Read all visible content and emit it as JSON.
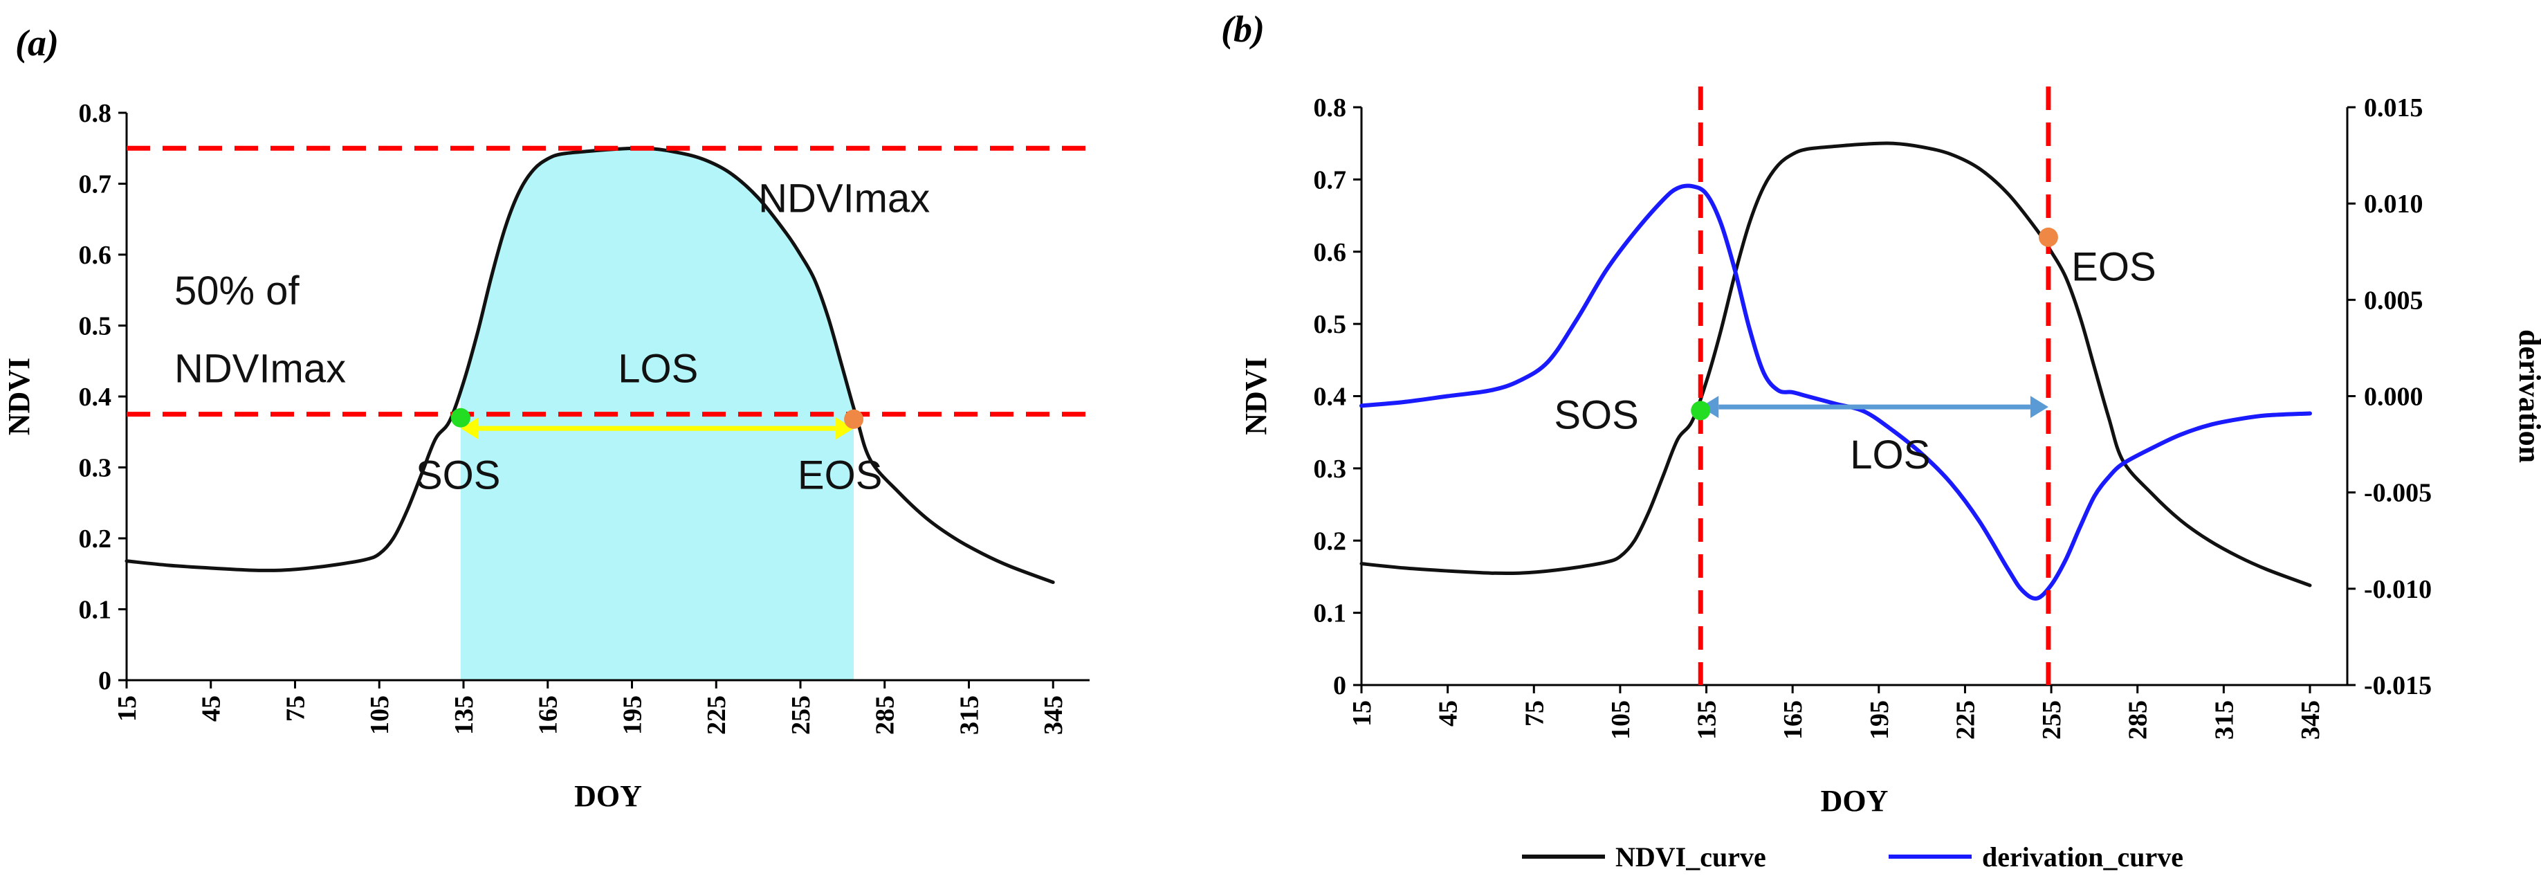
{
  "chart_data": [
    {
      "panel_label": "(a)",
      "type": "line",
      "xlabel": "DOY",
      "ylabel": "NDVI",
      "xlim": [
        15,
        358
      ],
      "ylim": [
        0,
        0.8
      ],
      "xticks": [
        "15",
        "45",
        "75",
        "105",
        "135",
        "165",
        "195",
        "225",
        "255",
        "285",
        "315",
        "345"
      ],
      "yticks": [
        "0",
        "0.1",
        "0.2",
        "0.3",
        "0.4",
        "0.5",
        "0.6",
        "0.7",
        "0.8"
      ],
      "grid": false,
      "series": [
        {
          "color": "#111111",
          "x": [
            15,
            30,
            45,
            60,
            70,
            80,
            90,
            100,
            105,
            110,
            115,
            120,
            125,
            130,
            135,
            140,
            145,
            150,
            155,
            160,
            165,
            170,
            180,
            190,
            200,
            210,
            220,
            230,
            240,
            250,
            255,
            260,
            265,
            270,
            275,
            280,
            290,
            300,
            310,
            320,
            330,
            345
          ],
          "y": [
            0.168,
            0.162,
            0.158,
            0.155,
            0.155,
            0.158,
            0.163,
            0.17,
            0.178,
            0.2,
            0.24,
            0.29,
            0.34,
            0.365,
            0.42,
            0.49,
            0.57,
            0.64,
            0.69,
            0.72,
            0.735,
            0.742,
            0.746,
            0.749,
            0.75,
            0.745,
            0.735,
            0.715,
            0.68,
            0.63,
            0.6,
            0.565,
            0.51,
            0.44,
            0.37,
            0.31,
            0.265,
            0.228,
            0.2,
            0.178,
            0.16,
            0.138
          ]
        }
      ],
      "fill_region": {
        "x_start": 134,
        "x_end": 274,
        "color": "#b3f5f8"
      },
      "reference_lines": [
        {
          "orientation": "horizontal",
          "y": 0.75,
          "color": "#ff0000",
          "style": "dashed"
        },
        {
          "orientation": "horizontal",
          "y": 0.375,
          "color": "#ff0000",
          "style": "dashed"
        }
      ],
      "markers": [
        {
          "x": 134,
          "y": 0.37,
          "color": "#22dd22"
        },
        {
          "x": 274,
          "y": 0.368,
          "color": "#ee8844"
        }
      ],
      "arrow": {
        "x_start": 134,
        "x_end": 274,
        "y": 0.355,
        "color": "#ffff00"
      },
      "annotations": [
        {
          "text": "NDVImax",
          "x": 240,
          "y": 0.66
        },
        {
          "text": "50% of",
          "x": 32,
          "y": 0.53
        },
        {
          "text": "NDVImax",
          "x": 32,
          "y": 0.42
        },
        {
          "text": "LOS",
          "x": 190,
          "y": 0.42
        },
        {
          "text": "SOS",
          "x": 118,
          "y": 0.27
        },
        {
          "text": "EOS",
          "x": 254,
          "y": 0.27
        }
      ]
    },
    {
      "panel_label": "(b)",
      "type": "line",
      "xlabel": "DOY",
      "ylabel": "NDVI",
      "y2label": "derivation",
      "xlim": [
        15,
        358
      ],
      "ylim": [
        0,
        0.8
      ],
      "y2lim": [
        -0.015,
        0.015
      ],
      "xticks": [
        "15",
        "45",
        "75",
        "105",
        "135",
        "165",
        "195",
        "225",
        "255",
        "285",
        "315",
        "345"
      ],
      "yticks": [
        "0",
        "0.1",
        "0.2",
        "0.3",
        "0.4",
        "0.5",
        "0.6",
        "0.7",
        "0.8"
      ],
      "y2ticks": [
        "-0.015",
        "-0.010",
        "-0.005",
        "0.000",
        "0.005",
        "0.010",
        "0.015"
      ],
      "grid": false,
      "legend": {
        "placement": "bottom"
      },
      "series": [
        {
          "name": "NDVI_curve",
          "axis": "left",
          "color": "#111111",
          "x": [
            15,
            30,
            45,
            60,
            70,
            80,
            90,
            100,
            105,
            110,
            115,
            120,
            125,
            130,
            135,
            140,
            145,
            150,
            155,
            160,
            165,
            170,
            180,
            190,
            200,
            210,
            220,
            230,
            240,
            250,
            255,
            260,
            265,
            270,
            275,
            280,
            290,
            300,
            310,
            320,
            330,
            345
          ],
          "y": [
            0.168,
            0.162,
            0.158,
            0.155,
            0.155,
            0.158,
            0.163,
            0.17,
            0.178,
            0.2,
            0.24,
            0.29,
            0.34,
            0.365,
            0.42,
            0.49,
            0.57,
            0.64,
            0.69,
            0.72,
            0.735,
            0.742,
            0.746,
            0.749,
            0.75,
            0.745,
            0.735,
            0.715,
            0.68,
            0.63,
            0.6,
            0.565,
            0.51,
            0.44,
            0.37,
            0.31,
            0.265,
            0.228,
            0.2,
            0.178,
            0.16,
            0.138
          ]
        },
        {
          "name": "derivation_curve",
          "axis": "right",
          "color": "#1a1aff",
          "x": [
            15,
            30,
            45,
            60,
            70,
            80,
            90,
            100,
            110,
            120,
            125,
            130,
            135,
            140,
            145,
            150,
            155,
            160,
            165,
            170,
            180,
            190,
            200,
            210,
            220,
            230,
            240,
            245,
            250,
            255,
            260,
            265,
            270,
            275,
            280,
            290,
            300,
            310,
            320,
            330,
            345
          ],
          "y": [
            -0.0005,
            -0.0003,
            0.0,
            0.0003,
            0.0008,
            0.0018,
            0.004,
            0.0065,
            0.0085,
            0.0102,
            0.0108,
            0.0109,
            0.0105,
            0.009,
            0.0065,
            0.0035,
            0.0012,
            0.0003,
            0.0002,
            0.0,
            -0.0004,
            -0.0008,
            -0.0018,
            -0.003,
            -0.0045,
            -0.0065,
            -0.009,
            -0.0101,
            -0.0105,
            -0.0098,
            -0.0085,
            -0.0068,
            -0.0052,
            -0.0042,
            -0.0035,
            -0.0027,
            -0.002,
            -0.0015,
            -0.0012,
            -0.001,
            -0.0009
          ]
        }
      ],
      "reference_lines": [
        {
          "orientation": "vertical",
          "x": 133,
          "color": "#ff0000",
          "style": "dashed"
        },
        {
          "orientation": "vertical",
          "x": 254,
          "color": "#ff0000",
          "style": "dashed"
        }
      ],
      "markers": [
        {
          "x": 133,
          "y": 0.38,
          "color": "#22dd22"
        },
        {
          "x": 254,
          "y": 0.62,
          "color": "#ee8844"
        }
      ],
      "arrow": {
        "x_start": 133,
        "x_end": 254,
        "y": 0.385,
        "color": "#5b9bd5"
      },
      "annotations": [
        {
          "text": "EOS",
          "x": 262,
          "y": 0.56
        },
        {
          "text": "SOS",
          "x": 82,
          "y": 0.355
        },
        {
          "text": "LOS",
          "x": 185,
          "y": 0.3
        }
      ]
    }
  ]
}
